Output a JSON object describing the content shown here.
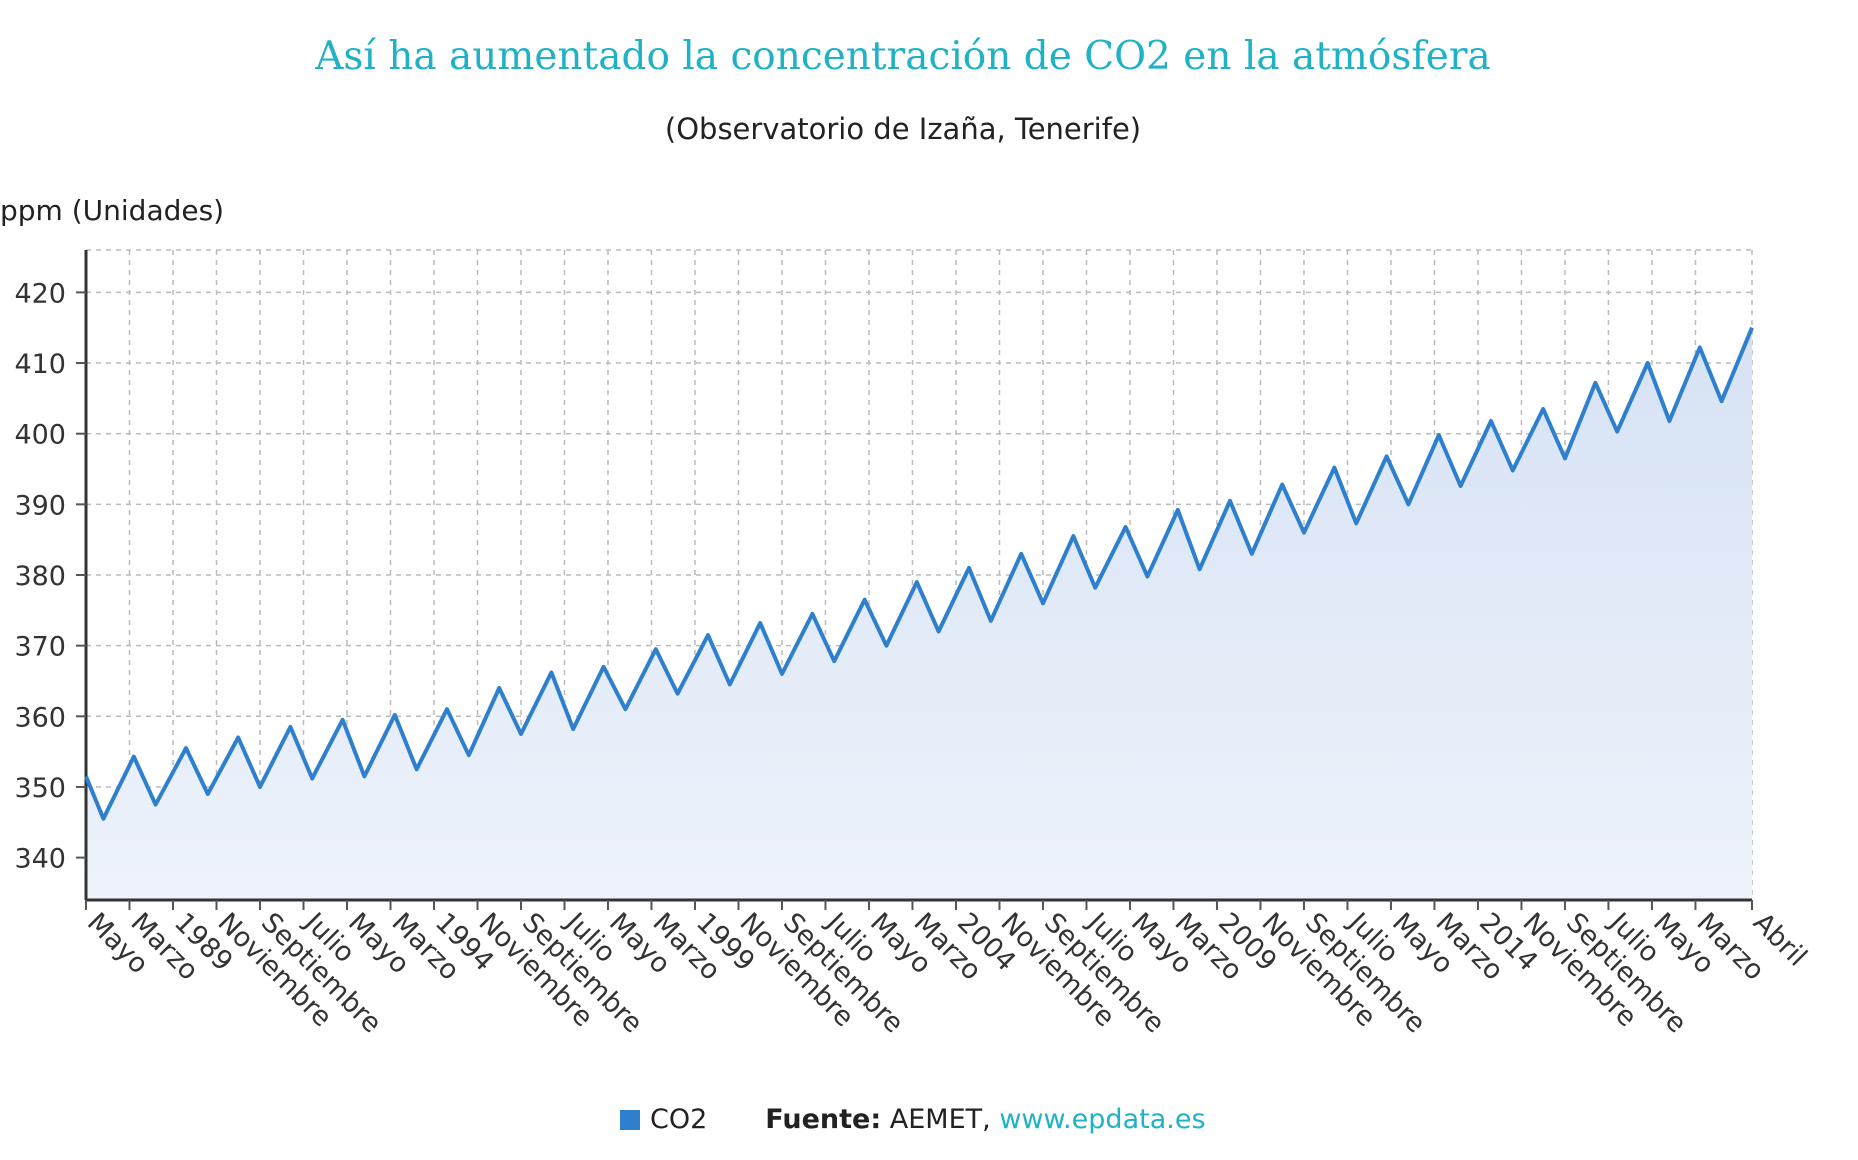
{
  "title": "Así ha aumentado la concentración de CO2 en la atmósfera",
  "subtitle": "(Observatorio de Izaña, Tenerife)",
  "footer": {
    "legend_label": "CO2",
    "source_label": "Fuente:",
    "source_text": "AEMET,",
    "source_link": "www.epdata.es"
  },
  "chart_data": {
    "type": "area",
    "title": "Así ha aumentado la concentración de CO2 en la atmósfera",
    "subtitle": "(Observatorio de Izaña, Tenerife)",
    "ylabel": "ppm (Unidades)",
    "xlabel": "",
    "ylim": [
      334,
      426
    ],
    "yticks": [
      340,
      350,
      360,
      370,
      380,
      390,
      400,
      410,
      420
    ],
    "grid": true,
    "legend_position": "bottom",
    "colors": {
      "line": "#2f7fcf",
      "fill_top": "#d6e2f4",
      "fill_bottom": "#eef3fb",
      "grid": "#bbbbbb",
      "title": "#1fb2c7"
    },
    "x_start": "1987-05",
    "x_end": "2019-04",
    "x_tick_labels": [
      {
        "date": "1987-05",
        "label": "Mayo"
      },
      {
        "date": "1988-03",
        "label": "Marzo"
      },
      {
        "date": "1989-01",
        "label": "1989"
      },
      {
        "date": "1989-11",
        "label": "Noviembre"
      },
      {
        "date": "1990-09",
        "label": "Septiembre"
      },
      {
        "date": "1991-07",
        "label": "Julio"
      },
      {
        "date": "1992-05",
        "label": "Mayo"
      },
      {
        "date": "1993-03",
        "label": "Marzo"
      },
      {
        "date": "1994-01",
        "label": "1994"
      },
      {
        "date": "1994-11",
        "label": "Noviembre"
      },
      {
        "date": "1995-09",
        "label": "Septiembre"
      },
      {
        "date": "1996-07",
        "label": "Julio"
      },
      {
        "date": "1997-05",
        "label": "Mayo"
      },
      {
        "date": "1998-03",
        "label": "Marzo"
      },
      {
        "date": "1999-01",
        "label": "1999"
      },
      {
        "date": "1999-11",
        "label": "Noviembre"
      },
      {
        "date": "2000-09",
        "label": "Septiembre"
      },
      {
        "date": "2001-07",
        "label": "Julio"
      },
      {
        "date": "2002-05",
        "label": "Mayo"
      },
      {
        "date": "2003-03",
        "label": "Marzo"
      },
      {
        "date": "2004-01",
        "label": "2004"
      },
      {
        "date": "2004-11",
        "label": "Noviembre"
      },
      {
        "date": "2005-09",
        "label": "Septiembre"
      },
      {
        "date": "2006-07",
        "label": "Julio"
      },
      {
        "date": "2007-05",
        "label": "Mayo"
      },
      {
        "date": "2008-03",
        "label": "Marzo"
      },
      {
        "date": "2009-01",
        "label": "2009"
      },
      {
        "date": "2009-11",
        "label": "Noviembre"
      },
      {
        "date": "2010-09",
        "label": "Septiembre"
      },
      {
        "date": "2011-07",
        "label": "Julio"
      },
      {
        "date": "2012-05",
        "label": "Mayo"
      },
      {
        "date": "2013-03",
        "label": "Marzo"
      },
      {
        "date": "2014-01",
        "label": "2014"
      },
      {
        "date": "2014-11",
        "label": "Noviembre"
      },
      {
        "date": "2015-09",
        "label": "Septiembre"
      },
      {
        "date": "2016-07",
        "label": "Julio"
      },
      {
        "date": "2017-05",
        "label": "Mayo"
      },
      {
        "date": "2018-03",
        "label": "Marzo"
      },
      {
        "date": "2019-04",
        "label": "Abril"
      }
    ],
    "series": [
      {
        "name": "CO2",
        "points": [
          [
            "1987-05",
            351.5
          ],
          [
            "1987-09",
            345.5
          ],
          [
            "1988-04",
            354.3
          ],
          [
            "1988-09",
            347.5
          ],
          [
            "1989-04",
            355.5
          ],
          [
            "1989-09",
            349.0
          ],
          [
            "1990-04",
            357.0
          ],
          [
            "1990-09",
            350.0
          ],
          [
            "1991-04",
            358.5
          ],
          [
            "1991-09",
            351.2
          ],
          [
            "1992-04",
            359.5
          ],
          [
            "1992-09",
            351.5
          ],
          [
            "1993-04",
            360.2
          ],
          [
            "1993-09",
            352.5
          ],
          [
            "1994-04",
            361.0
          ],
          [
            "1994-09",
            354.5
          ],
          [
            "1995-04",
            364.0
          ],
          [
            "1995-09",
            357.5
          ],
          [
            "1996-04",
            366.2
          ],
          [
            "1996-09",
            358.2
          ],
          [
            "1997-04",
            367.0
          ],
          [
            "1997-09",
            361.0
          ],
          [
            "1998-04",
            369.5
          ],
          [
            "1998-09",
            363.2
          ],
          [
            "1999-04",
            371.5
          ],
          [
            "1999-09",
            364.5
          ],
          [
            "2000-04",
            373.2
          ],
          [
            "2000-09",
            366.0
          ],
          [
            "2001-04",
            374.5
          ],
          [
            "2001-09",
            367.8
          ],
          [
            "2002-04",
            376.5
          ],
          [
            "2002-09",
            370.0
          ],
          [
            "2003-04",
            379.0
          ],
          [
            "2003-09",
            372.0
          ],
          [
            "2004-04",
            381.0
          ],
          [
            "2004-09",
            373.5
          ],
          [
            "2005-04",
            383.0
          ],
          [
            "2005-09",
            376.0
          ],
          [
            "2006-04",
            385.5
          ],
          [
            "2006-09",
            378.2
          ],
          [
            "2007-04",
            386.8
          ],
          [
            "2007-09",
            379.8
          ],
          [
            "2008-04",
            389.2
          ],
          [
            "2008-09",
            380.8
          ],
          [
            "2009-04",
            390.5
          ],
          [
            "2009-09",
            383.0
          ],
          [
            "2010-04",
            392.8
          ],
          [
            "2010-09",
            386.0
          ],
          [
            "2011-04",
            395.2
          ],
          [
            "2011-09",
            387.3
          ],
          [
            "2012-04",
            396.8
          ],
          [
            "2012-09",
            390.0
          ],
          [
            "2013-04",
            399.8
          ],
          [
            "2013-09",
            392.6
          ],
          [
            "2014-04",
            401.8
          ],
          [
            "2014-09",
            394.8
          ],
          [
            "2015-04",
            403.5
          ],
          [
            "2015-09",
            396.5
          ],
          [
            "2016-04",
            407.2
          ],
          [
            "2016-09",
            400.3
          ],
          [
            "2017-04",
            410.0
          ],
          [
            "2017-09",
            401.8
          ],
          [
            "2018-04",
            412.2
          ],
          [
            "2018-09",
            404.6
          ],
          [
            "2019-04",
            415.0
          ]
        ]
      }
    ]
  }
}
